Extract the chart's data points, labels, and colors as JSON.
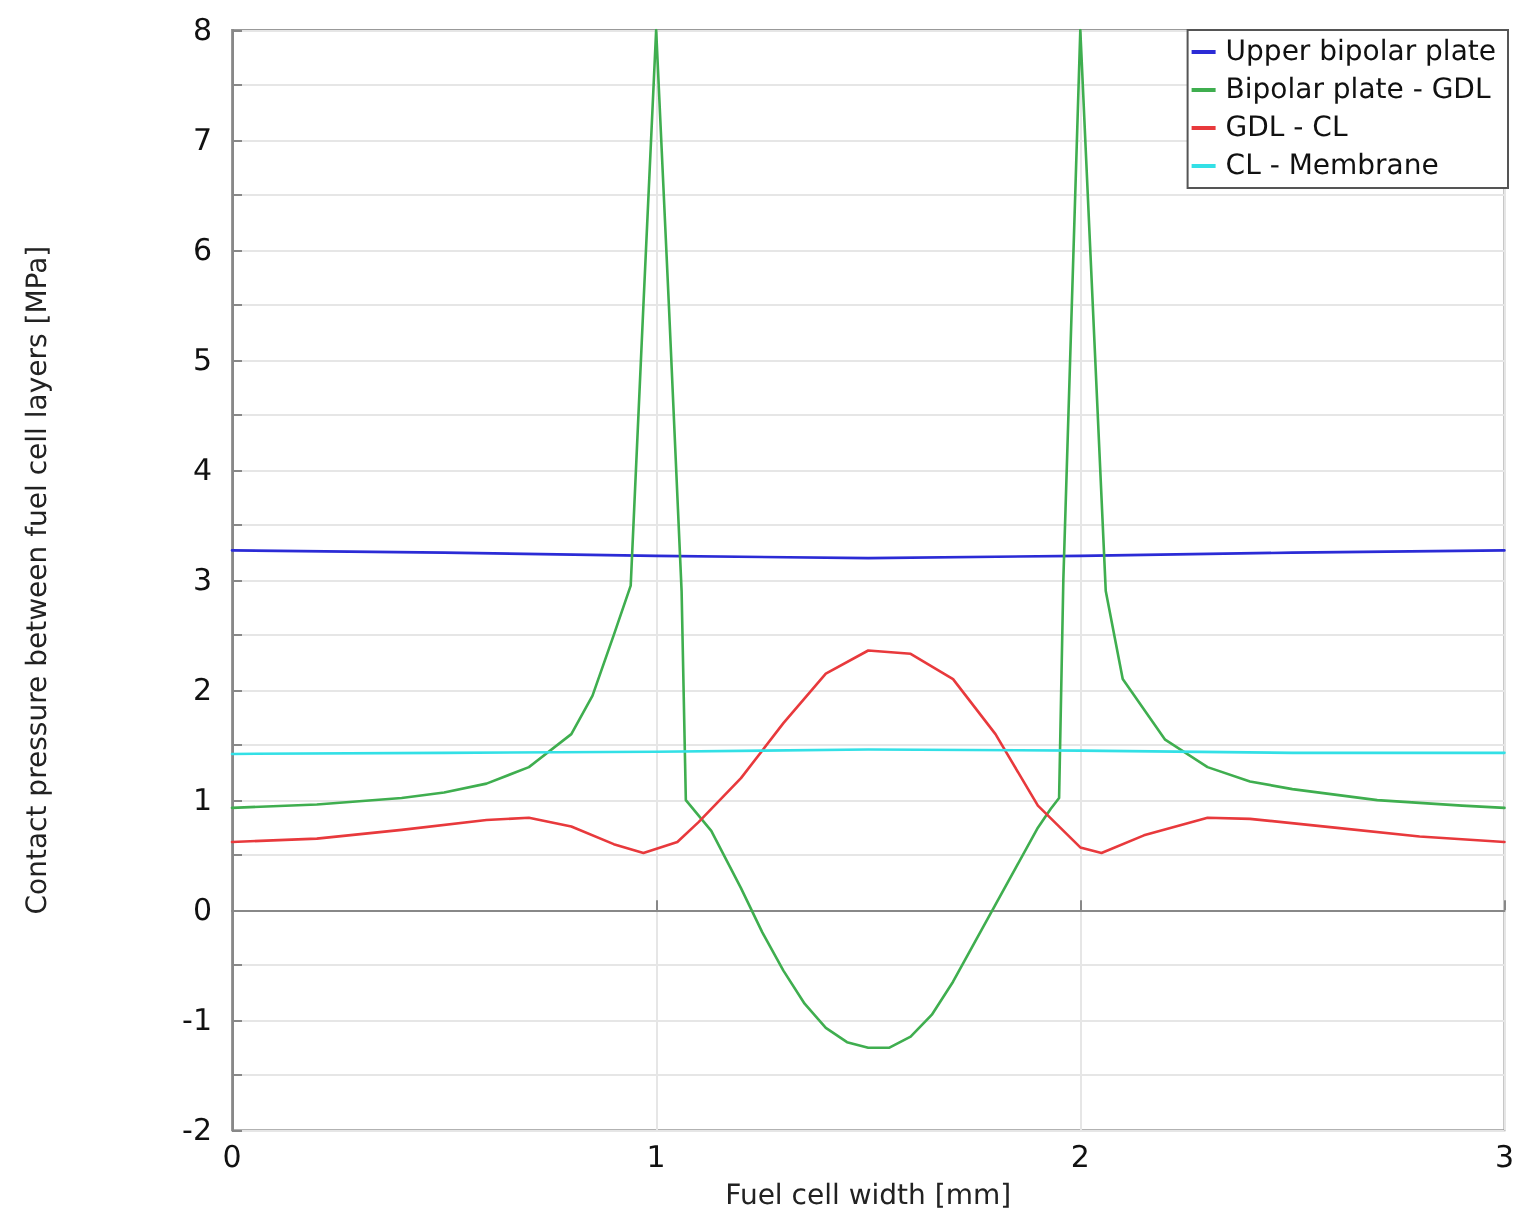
{
  "chart_data": {
    "type": "line",
    "xlabel": "Fuel cell width [mm]",
    "ylabel": "Contact pressure between fuel cell layers [MPa]",
    "xlim": [
      0,
      3
    ],
    "xticks": [
      0,
      1,
      2,
      3
    ],
    "ylim": [
      -2,
      8
    ],
    "yticks": [
      -2,
      {
        "value": -1.5,
        "label": null
      },
      -1,
      {
        "value": -0.5,
        "label": null
      },
      0,
      {
        "value": 0.5,
        "label": null
      },
      1,
      {
        "value": 1.5,
        "label": null
      },
      2,
      {
        "value": 2.5,
        "label": null
      },
      3,
      {
        "value": 3.5,
        "label": null
      },
      4,
      {
        "value": 4.5,
        "label": null
      },
      5,
      {
        "value": 5.5,
        "label": null
      },
      6,
      {
        "value": 6.5,
        "label": null
      },
      7,
      {
        "value": 7.5,
        "label": null
      },
      8
    ],
    "grid": true,
    "legend": "top right",
    "marker": "none",
    "line_style": "solid",
    "series": [
      {
        "name": "Upper bipolar plate",
        "color": "#2b2bd6",
        "x": [
          0,
          0.5,
          1,
          1.5,
          2,
          2.5,
          3
        ],
        "values": [
          3.27,
          3.25,
          3.22,
          3.2,
          3.22,
          3.25,
          3.27
        ]
      },
      {
        "name": "Bipolar plate - GDL",
        "color": "#3fae4f",
        "x": [
          0,
          0.2,
          0.4,
          0.5,
          0.6,
          0.7,
          0.8,
          0.85,
          0.9,
          0.94,
          0.97,
          1.0,
          1.03,
          1.06,
          1.07,
          1.13,
          1.2,
          1.25,
          1.3,
          1.35,
          1.4,
          1.45,
          1.5,
          1.55,
          1.6,
          1.65,
          1.7,
          1.75,
          1.8,
          1.85,
          1.9,
          1.93,
          1.95,
          1.96,
          2.0,
          2.06,
          2.1,
          2.2,
          2.3,
          2.4,
          2.5,
          2.7,
          2.9,
          3.0
        ],
        "values": [
          0.93,
          0.96,
          1.02,
          1.07,
          1.15,
          1.3,
          1.6,
          1.95,
          2.5,
          2.95,
          5.5,
          8,
          5.5,
          2.9,
          1.0,
          0.72,
          0.2,
          -0.2,
          -0.55,
          -0.85,
          -1.07,
          -1.2,
          -1.25,
          -1.25,
          -1.15,
          -0.95,
          -0.65,
          -0.3,
          0.05,
          0.4,
          0.75,
          0.92,
          1.02,
          3.0,
          8,
          2.9,
          2.1,
          1.55,
          1.3,
          1.17,
          1.1,
          1.0,
          0.95,
          0.93
        ]
      },
      {
        "name": "GDL - CL",
        "color": "#e8393c",
        "x": [
          0,
          0.2,
          0.4,
          0.6,
          0.7,
          0.8,
          0.9,
          0.97,
          1.05,
          1.1,
          1.2,
          1.3,
          1.4,
          1.5,
          1.6,
          1.7,
          1.8,
          1.9,
          2.0,
          2.05,
          2.15,
          2.3,
          2.4,
          2.6,
          2.8,
          3.0
        ],
        "values": [
          0.62,
          0.65,
          0.73,
          0.82,
          0.84,
          0.76,
          0.6,
          0.52,
          0.62,
          0.8,
          1.2,
          1.7,
          2.15,
          2.36,
          2.33,
          2.1,
          1.6,
          0.95,
          0.57,
          0.52,
          0.68,
          0.84,
          0.83,
          0.75,
          0.67,
          0.62
        ]
      },
      {
        "name": "CL - Membrane",
        "color": "#33e0e6",
        "x": [
          0,
          0.5,
          1,
          1.5,
          2,
          2.5,
          3
        ],
        "values": [
          1.42,
          1.43,
          1.44,
          1.46,
          1.45,
          1.43,
          1.43
        ]
      }
    ]
  }
}
